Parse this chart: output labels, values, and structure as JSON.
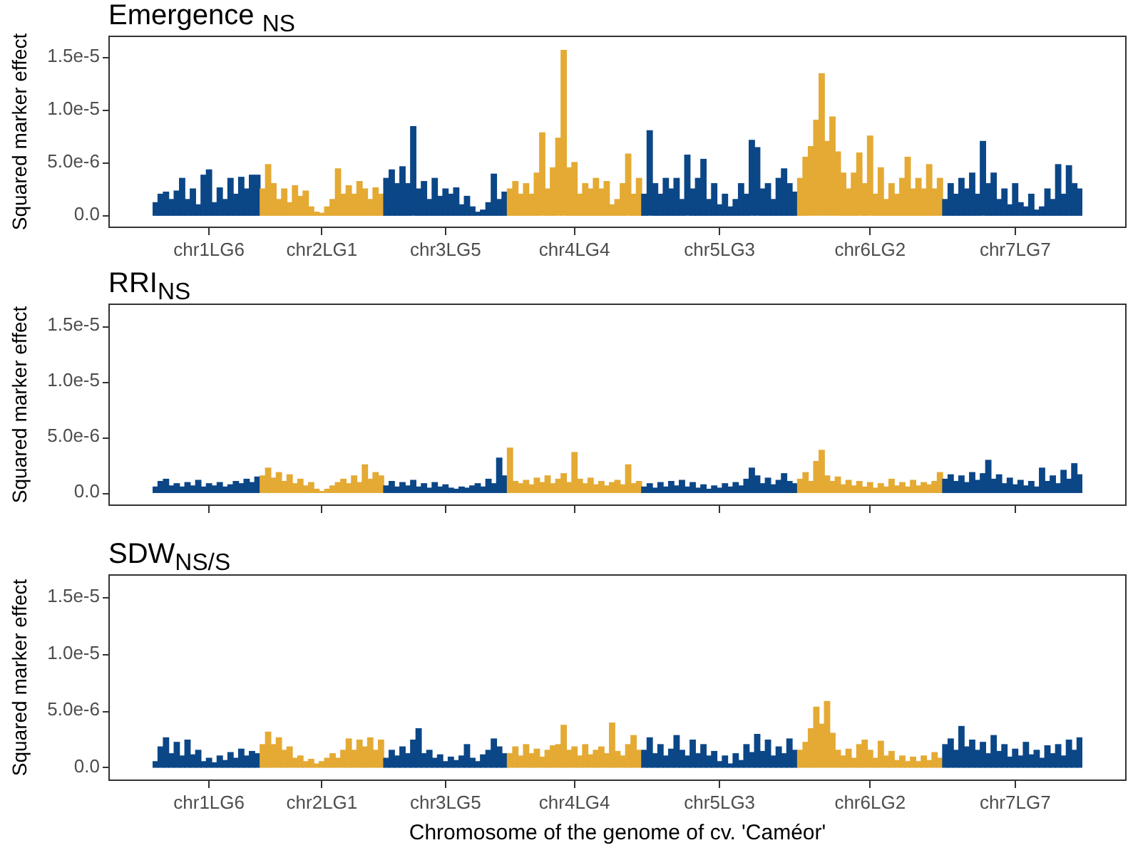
{
  "chart_data": [
    {
      "type": "bar",
      "title": "Emergence $_{NS}$",
      "ylabel": "Squared marker effect",
      "categories": [
        null,
        null,
        null,
        null,
        null,
        null,
        null,
        null,
        null,
        null,
        "chr1LG6",
        null,
        null,
        null,
        null,
        null,
        null,
        null,
        null,
        null,
        null,
        null,
        null,
        null,
        null,
        null,
        null,
        null,
        null,
        null,
        null,
        "chr2LG1",
        null,
        null,
        null,
        null,
        null,
        null,
        null,
        null,
        null,
        null,
        null,
        null,
        null,
        null,
        null,
        null,
        null,
        null,
        null,
        null,
        null,
        null,
        "chr3LG5",
        null,
        null,
        null,
        null,
        null,
        null,
        null,
        null,
        null,
        null,
        null,
        null,
        null,
        null,
        null,
        null,
        null,
        null,
        null,
        null,
        null,
        null,
        null,
        "chr4LG4",
        null,
        null,
        null,
        null,
        null,
        null,
        null,
        null,
        null,
        null,
        null,
        null,
        null,
        null,
        null,
        null,
        null,
        null,
        null,
        null,
        null,
        null,
        null,
        null,
        null,
        null,
        "chr5LG3",
        null,
        null,
        null,
        null,
        null,
        null,
        null,
        null,
        null,
        null,
        null,
        null,
        null,
        null,
        null,
        null,
        null,
        null,
        null,
        null,
        null,
        null,
        null,
        null,
        null,
        null,
        null,
        "chr6LG2",
        null,
        null,
        null,
        null,
        null,
        null,
        null,
        null,
        null,
        null,
        null,
        null,
        null,
        null,
        null,
        null,
        null,
        null,
        null,
        null,
        null,
        null,
        null,
        null,
        null,
        null,
        "chr7LG7",
        null,
        null,
        null,
        null,
        null,
        null,
        null,
        null,
        null,
        null,
        null,
        null
      ],
      "values": [
        1.2e-06,
        2e-06,
        2.2e-06,
        1.5e-06,
        2.3e-06,
        3.5e-06,
        1.5e-06,
        2.5e-06,
        1e-06,
        3.8e-06,
        4.3e-06,
        1.2e-06,
        2.6e-06,
        1.5e-06,
        3.5e-06,
        2e-06,
        3.6e-06,
        2.5e-06,
        3.8e-06,
        3.8e-06,
        2.5e-06,
        4.8e-06,
        3e-06,
        1.5e-06,
        2.5e-06,
        1.2e-06,
        2.8e-06,
        1.8e-06,
        2.3e-06,
        8e-07,
        3e-07,
        2e-07,
        8e-07,
        1.5e-06,
        4.4e-06,
        2e-06,
        2.8e-06,
        2e-06,
        3.2e-06,
        2.5e-06,
        1.5e-06,
        2.6e-06,
        2e-06,
        3.5e-06,
        4.3e-06,
        3e-06,
        4.6e-06,
        3e-06,
        8.4e-06,
        2.5e-06,
        3.2e-06,
        1.5e-06,
        3.5e-06,
        1.8e-06,
        2.5e-06,
        2e-06,
        2.6e-06,
        1e-06,
        1.8e-06,
        8e-07,
        3e-07,
        5e-07,
        1.2e-06,
        3.9e-06,
        1.5e-06,
        2.2e-06,
        2.5e-06,
        3.2e-06,
        2e-06,
        3e-06,
        2e-06,
        4e-06,
        7.8e-06,
        2.5e-06,
        4.5e-06,
        7.3e-06,
        1.56e-05,
        4.5e-06,
        5e-06,
        2e-06,
        3e-06,
        2.5e-06,
        3.5e-06,
        2.5e-06,
        3.2e-06,
        1e-06,
        1.5e-06,
        3e-06,
        5.8e-06,
        2e-06,
        3.5e-06,
        2e-06,
        8e-06,
        3e-06,
        2e-06,
        3.5e-06,
        2.5e-06,
        3.5e-06,
        1.5e-06,
        5.7e-06,
        2.5e-06,
        3.5e-06,
        5.3e-06,
        1.5e-06,
        3e-06,
        1e-06,
        2e-06,
        8e-07,
        1.5e-06,
        3e-06,
        2e-06,
        7.1e-06,
        6.4e-06,
        2.5e-06,
        3e-06,
        1.5e-06,
        3.5e-06,
        4.4e-06,
        3e-06,
        2.2e-06,
        3.5e-06,
        5.5e-06,
        6.5e-06,
        9e-06,
        1.34e-05,
        7e-06,
        9.3e-06,
        6e-06,
        4e-06,
        2.5e-06,
        4e-06,
        5.9e-06,
        3e-06,
        7.5e-06,
        2e-06,
        4.5e-06,
        1.5e-06,
        3e-06,
        2e-06,
        3.5e-06,
        5.5e-06,
        2.5e-06,
        3.5e-06,
        2.5e-06,
        4.8e-06,
        2.5e-06,
        3.5e-06,
        1.5e-06,
        3e-06,
        2e-06,
        3.5e-06,
        2.5e-06,
        4e-06,
        2e-06,
        7e-06,
        3e-06,
        4e-06,
        1.5e-06,
        2.5e-06,
        1e-06,
        3e-06,
        1.2e-06,
        8e-07,
        2e-06,
        5e-07,
        8e-07,
        2.5e-06,
        1.5e-06,
        4.8e-06,
        2e-06,
        4.7e-06,
        3e-06,
        2.5e-06
      ],
      "colors": [
        "#0b4687",
        "#0b4687",
        "#0b4687",
        "#0b4687",
        "#0b4687",
        "#0b4687",
        "#0b4687",
        "#0b4687",
        "#0b4687",
        "#0b4687",
        "#0b4687",
        "#0b4687",
        "#0b4687",
        "#0b4687",
        "#0b4687",
        "#0b4687",
        "#0b4687",
        "#0b4687",
        "#0b4687",
        "#0b4687",
        "#e4aa34",
        "#e4aa34",
        "#e4aa34",
        "#e4aa34",
        "#e4aa34",
        "#e4aa34",
        "#e4aa34",
        "#e4aa34",
        "#e4aa34",
        "#e4aa34",
        "#e4aa34",
        "#e4aa34",
        "#e4aa34",
        "#e4aa34",
        "#e4aa34",
        "#e4aa34",
        "#e4aa34",
        "#e4aa34",
        "#e4aa34",
        "#e4aa34",
        "#e4aa34",
        "#e4aa34",
        "#e4aa34",
        "#0b4687",
        "#0b4687",
        "#0b4687",
        "#0b4687",
        "#0b4687",
        "#0b4687",
        "#0b4687",
        "#0b4687",
        "#0b4687",
        "#0b4687",
        "#0b4687",
        "#0b4687",
        "#0b4687",
        "#0b4687",
        "#0b4687",
        "#0b4687",
        "#0b4687",
        "#0b4687",
        "#0b4687",
        "#0b4687",
        "#0b4687",
        "#0b4687",
        "#0b4687",
        "#e4aa34",
        "#e4aa34",
        "#e4aa34",
        "#e4aa34",
        "#e4aa34",
        "#e4aa34",
        "#e4aa34",
        "#e4aa34",
        "#e4aa34",
        "#e4aa34",
        "#e4aa34",
        "#e4aa34",
        "#e4aa34",
        "#e4aa34",
        "#e4aa34",
        "#e4aa34",
        "#e4aa34",
        "#e4aa34",
        "#e4aa34",
        "#e4aa34",
        "#e4aa34",
        "#e4aa34",
        "#e4aa34",
        "#e4aa34",
        "#e4aa34",
        "#0b4687",
        "#0b4687",
        "#0b4687",
        "#0b4687",
        "#0b4687",
        "#0b4687",
        "#0b4687",
        "#0b4687",
        "#0b4687",
        "#0b4687",
        "#0b4687",
        "#0b4687",
        "#0b4687",
        "#0b4687",
        "#0b4687",
        "#0b4687",
        "#0b4687",
        "#0b4687",
        "#0b4687",
        "#0b4687",
        "#0b4687",
        "#0b4687",
        "#0b4687",
        "#0b4687",
        "#0b4687",
        "#0b4687",
        "#0b4687",
        "#0b4687",
        "#0b4687",
        "#e4aa34",
        "#e4aa34",
        "#e4aa34",
        "#e4aa34",
        "#e4aa34",
        "#e4aa34",
        "#e4aa34",
        "#e4aa34",
        "#e4aa34",
        "#e4aa34",
        "#e4aa34",
        "#e4aa34",
        "#e4aa34",
        "#e4aa34",
        "#e4aa34",
        "#e4aa34",
        "#e4aa34",
        "#e4aa34",
        "#e4aa34",
        "#e4aa34",
        "#e4aa34",
        "#e4aa34",
        "#e4aa34",
        "#e4aa34",
        "#e4aa34",
        "#e4aa34",
        "#e4aa34",
        "#0b4687",
        "#0b4687",
        "#0b4687",
        "#0b4687",
        "#0b4687",
        "#0b4687",
        "#0b4687",
        "#0b4687",
        "#0b4687",
        "#0b4687",
        "#0b4687",
        "#0b4687",
        "#0b4687",
        "#0b4687",
        "#0b4687",
        "#0b4687",
        "#0b4687",
        "#0b4687",
        "#0b4687",
        "#0b4687",
        "#0b4687",
        "#0b4687",
        "#0b4687",
        "#0b4687",
        "#0b4687",
        "#0b4687"
      ],
      "ylim": [
        -1.2e-06,
        1.7e-05
      ],
      "yticks": [
        {
          "value": 0,
          "label": "0.0"
        },
        {
          "value": 5e-06,
          "label": "5.0e-6"
        },
        {
          "value": 1e-05,
          "label": "1.0e-5"
        },
        {
          "value": 1.5e-05,
          "label": "1.5e-5"
        }
      ]
    },
    {
      "type": "bar",
      "title": "RRI$_{NS}$",
      "ylabel": "Squared marker effect",
      "tick_labels": "y",
      "categories": [
        null,
        null,
        null,
        null,
        null,
        null,
        null,
        null,
        null,
        null,
        null,
        null,
        null,
        null,
        null,
        null,
        null,
        null,
        null,
        null,
        null,
        null,
        null,
        null,
        null,
        null,
        null,
        null,
        null,
        null,
        null,
        null,
        null,
        null,
        null,
        null,
        null,
        null,
        null,
        null,
        null,
        null,
        null,
        null,
        null,
        null,
        null,
        null,
        null,
        null,
        null,
        null,
        null,
        null,
        null,
        null,
        null,
        null,
        null,
        null,
        null,
        null,
        null,
        null,
        null,
        null,
        null,
        null,
        null,
        null,
        null,
        null,
        null,
        null,
        null,
        null,
        null,
        null,
        null,
        null,
        null,
        null,
        null,
        null,
        null,
        null,
        null,
        null,
        null,
        null,
        null,
        null,
        null,
        null,
        null,
        null,
        null,
        null,
        null,
        null,
        null,
        null,
        null,
        null,
        null,
        null,
        null,
        null,
        null,
        null,
        null,
        null,
        null,
        null,
        null,
        null,
        null,
        null,
        null,
        null,
        null,
        null,
        null,
        null,
        null,
        null,
        null,
        null,
        null,
        null,
        null,
        null,
        null,
        null,
        null,
        null,
        null,
        null,
        null,
        null,
        null,
        null,
        null,
        null,
        null,
        null,
        null,
        null,
        null,
        null,
        null,
        null,
        null,
        null,
        null,
        null,
        null,
        null,
        null,
        null,
        null,
        null,
        null,
        null,
        null,
        null,
        null,
        null,
        null,
        null,
        null,
        null,
        null
      ],
      "values": [
        5e-07,
        1e-06,
        1.2e-06,
        6e-07,
        8e-07,
        5e-07,
        9e-07,
        6e-07,
        1.1e-06,
        5e-07,
        8e-07,
        6e-07,
        9e-07,
        5e-07,
        7e-07,
        1e-06,
        8e-07,
        1.2e-06,
        9e-07,
        1.4e-06,
        1.5e-06,
        2.2e-06,
        1.3e-06,
        1.8e-06,
        1e-06,
        1.6e-06,
        8e-07,
        1.2e-06,
        6e-07,
        9e-07,
        3e-07,
        1e-07,
        3e-07,
        6e-07,
        9e-07,
        1.2e-06,
        8e-07,
        1.5e-06,
        9e-07,
        2.5e-06,
        1.2e-06,
        1.8e-06,
        1.5e-06,
        6e-07,
        1e-06,
        5e-07,
        9e-07,
        6e-07,
        1.1e-06,
        5e-07,
        8e-07,
        4e-07,
        9e-07,
        5e-07,
        7e-07,
        4e-07,
        3e-07,
        5e-07,
        4e-07,
        6e-07,
        8e-07,
        5e-07,
        1.2e-06,
        8e-07,
        3.1e-06,
        1.5e-06,
        4e-06,
        1e-06,
        8e-07,
        1.1e-06,
        7e-07,
        1.3e-06,
        9e-07,
        1.5e-06,
        8e-07,
        1.2e-06,
        1.7e-06,
        9e-07,
        3.6e-06,
        1.2e-06,
        8e-07,
        1.3e-06,
        7e-07,
        1e-06,
        6e-07,
        9e-07,
        1.1e-06,
        7e-07,
        2.5e-06,
        8e-07,
        1e-06,
        5e-07,
        8e-07,
        4e-07,
        9e-07,
        5e-07,
        1e-06,
        6e-07,
        1.1e-06,
        5e-07,
        9e-07,
        4e-07,
        7e-07,
        3e-07,
        6e-07,
        4e-07,
        8e-07,
        5e-07,
        9e-07,
        6e-07,
        1.2e-06,
        2.2e-06,
        1.5e-06,
        8e-07,
        1.3e-06,
        7e-07,
        1.1e-06,
        1.7e-06,
        1e-06,
        8e-07,
        1.2e-06,
        1.8e-06,
        1e-06,
        2.8e-06,
        3.8e-06,
        1.5e-06,
        1e-06,
        1.4e-06,
        7e-07,
        1.1e-06,
        6e-07,
        1e-06,
        5e-07,
        9e-07,
        4e-07,
        8e-07,
        5e-07,
        1.2e-06,
        6e-07,
        9e-07,
        5e-07,
        1.1e-06,
        6e-07,
        9e-07,
        7e-07,
        1e-06,
        1.8e-06,
        1.2e-06,
        1.6e-06,
        1e-06,
        1.5e-06,
        9e-07,
        1.8e-06,
        1.1e-06,
        1.7e-06,
        2.9e-06,
        1.2e-06,
        1.6e-06,
        8e-07,
        1.3e-06,
        7e-07,
        1.1e-06,
        6e-07,
        1e-06,
        5e-07,
        2.2e-06,
        1e-06,
        1.5e-06,
        8e-07,
        2e-06,
        1.2e-06,
        2.6e-06,
        1.6e-06
      ],
      "colors": [
        "#0b4687",
        "#0b4687",
        "#0b4687",
        "#0b4687",
        "#0b4687",
        "#0b4687",
        "#0b4687",
        "#0b4687",
        "#0b4687",
        "#0b4687",
        "#0b4687",
        "#0b4687",
        "#0b4687",
        "#0b4687",
        "#0b4687",
        "#0b4687",
        "#0b4687",
        "#0b4687",
        "#0b4687",
        "#0b4687",
        "#e4aa34",
        "#e4aa34",
        "#e4aa34",
        "#e4aa34",
        "#e4aa34",
        "#e4aa34",
        "#e4aa34",
        "#e4aa34",
        "#e4aa34",
        "#e4aa34",
        "#e4aa34",
        "#e4aa34",
        "#e4aa34",
        "#e4aa34",
        "#e4aa34",
        "#e4aa34",
        "#e4aa34",
        "#e4aa34",
        "#e4aa34",
        "#e4aa34",
        "#e4aa34",
        "#e4aa34",
        "#e4aa34",
        "#0b4687",
        "#0b4687",
        "#0b4687",
        "#0b4687",
        "#0b4687",
        "#0b4687",
        "#0b4687",
        "#0b4687",
        "#0b4687",
        "#0b4687",
        "#0b4687",
        "#0b4687",
        "#0b4687",
        "#0b4687",
        "#0b4687",
        "#0b4687",
        "#0b4687",
        "#0b4687",
        "#0b4687",
        "#0b4687",
        "#0b4687",
        "#0b4687",
        "#0b4687",
        "#e4aa34",
        "#e4aa34",
        "#e4aa34",
        "#e4aa34",
        "#e4aa34",
        "#e4aa34",
        "#e4aa34",
        "#e4aa34",
        "#e4aa34",
        "#e4aa34",
        "#e4aa34",
        "#e4aa34",
        "#e4aa34",
        "#e4aa34",
        "#e4aa34",
        "#e4aa34",
        "#e4aa34",
        "#e4aa34",
        "#e4aa34",
        "#e4aa34",
        "#e4aa34",
        "#e4aa34",
        "#e4aa34",
        "#e4aa34",
        "#e4aa34",
        "#0b4687",
        "#0b4687",
        "#0b4687",
        "#0b4687",
        "#0b4687",
        "#0b4687",
        "#0b4687",
        "#0b4687",
        "#0b4687",
        "#0b4687",
        "#0b4687",
        "#0b4687",
        "#0b4687",
        "#0b4687",
        "#0b4687",
        "#0b4687",
        "#0b4687",
        "#0b4687",
        "#0b4687",
        "#0b4687",
        "#0b4687",
        "#0b4687",
        "#0b4687",
        "#0b4687",
        "#0b4687",
        "#0b4687",
        "#0b4687",
        "#0b4687",
        "#0b4687",
        "#e4aa34",
        "#e4aa34",
        "#e4aa34",
        "#e4aa34",
        "#e4aa34",
        "#e4aa34",
        "#e4aa34",
        "#e4aa34",
        "#e4aa34",
        "#e4aa34",
        "#e4aa34",
        "#e4aa34",
        "#e4aa34",
        "#e4aa34",
        "#e4aa34",
        "#e4aa34",
        "#e4aa34",
        "#e4aa34",
        "#e4aa34",
        "#e4aa34",
        "#e4aa34",
        "#e4aa34",
        "#e4aa34",
        "#e4aa34",
        "#e4aa34",
        "#e4aa34",
        "#e4aa34",
        "#0b4687",
        "#0b4687",
        "#0b4687",
        "#0b4687",
        "#0b4687",
        "#0b4687",
        "#0b4687",
        "#0b4687",
        "#0b4687",
        "#0b4687",
        "#0b4687",
        "#0b4687",
        "#0b4687",
        "#0b4687",
        "#0b4687",
        "#0b4687",
        "#0b4687",
        "#0b4687",
        "#0b4687",
        "#0b4687",
        "#0b4687",
        "#0b4687",
        "#0b4687",
        "#0b4687",
        "#0b4687",
        "#0b4687"
      ],
      "ylim": [
        -1.2e-06,
        1.7e-05
      ],
      "yticks": [
        {
          "value": 0,
          "label": "0.0"
        },
        {
          "value": 5e-06,
          "label": "5.0e-6"
        },
        {
          "value": 1e-05,
          "label": "1.0e-5"
        },
        {
          "value": 1.5e-05,
          "label": "1.5e-5"
        }
      ]
    },
    {
      "type": "bar",
      "title": "SDW$_{NS/S}$",
      "ylabel": "Squared marker effect",
      "xlabel": "Chromosome of the genome of cv. 'Caméor'",
      "categories": [
        null,
        null,
        null,
        null,
        null,
        null,
        null,
        null,
        null,
        null,
        "chr1LG6",
        null,
        null,
        null,
        null,
        null,
        null,
        null,
        null,
        null,
        null,
        null,
        null,
        null,
        null,
        null,
        null,
        null,
        null,
        null,
        null,
        "chr2LG1",
        null,
        null,
        null,
        null,
        null,
        null,
        null,
        null,
        null,
        null,
        null,
        null,
        null,
        null,
        null,
        null,
        null,
        null,
        null,
        null,
        null,
        null,
        "chr3LG5",
        null,
        null,
        null,
        null,
        null,
        null,
        null,
        null,
        null,
        null,
        null,
        null,
        null,
        null,
        null,
        null,
        null,
        null,
        null,
        null,
        null,
        null,
        null,
        "chr4LG4",
        null,
        null,
        null,
        null,
        null,
        null,
        null,
        null,
        null,
        null,
        null,
        null,
        null,
        null,
        null,
        null,
        null,
        null,
        null,
        null,
        null,
        null,
        null,
        null,
        null,
        null,
        "chr5LG3",
        null,
        null,
        null,
        null,
        null,
        null,
        null,
        null,
        null,
        null,
        null,
        null,
        null,
        null,
        null,
        null,
        null,
        null,
        null,
        null,
        null,
        null,
        null,
        null,
        null,
        null,
        null,
        "chr6LG2",
        null,
        null,
        null,
        null,
        null,
        null,
        null,
        null,
        null,
        null,
        null,
        null,
        null,
        null,
        null,
        null,
        null,
        null,
        null,
        null,
        null,
        null,
        null,
        null,
        null,
        null,
        "chr7LG7",
        null,
        null,
        null,
        null,
        null,
        null,
        null,
        null,
        null,
        null,
        null,
        null
      ],
      "values": [
        5e-07,
        1.8e-06,
        2.6e-06,
        1.2e-06,
        2.2e-06,
        1e-06,
        2.4e-06,
        1.1e-06,
        1.5e-06,
        5e-07,
        8e-07,
        4e-07,
        1e-06,
        6e-07,
        1.3e-06,
        8e-07,
        1.6e-06,
        1e-06,
        1.4e-06,
        1.2e-06,
        2e-06,
        3.1e-06,
        2e-06,
        2.6e-06,
        1.5e-06,
        1.8e-06,
        8e-07,
        1e-06,
        5e-07,
        7e-07,
        3e-07,
        5e-07,
        8e-07,
        1.2e-06,
        8e-07,
        1.5e-06,
        2.5e-06,
        1.5e-06,
        2.4e-06,
        1.8e-06,
        2.6e-06,
        1.5e-06,
        2.4e-06,
        8e-07,
        1.5e-06,
        1e-06,
        1.8e-06,
        1.2e-06,
        2.4e-06,
        3.4e-06,
        1.2e-06,
        1.5e-06,
        8e-07,
        1.1e-06,
        5e-07,
        9e-07,
        6e-07,
        1e-06,
        2e-06,
        8e-07,
        5e-07,
        1.1e-06,
        1.5e-06,
        2.5e-06,
        1.8e-06,
        1.2e-06,
        1.2e-06,
        1.8e-06,
        1e-06,
        2e-06,
        1.2e-06,
        1.6e-06,
        9e-07,
        1.5e-06,
        1.9e-06,
        2e-06,
        3.7e-06,
        1.5e-06,
        1.8e-06,
        1e-06,
        2e-06,
        1.1e-06,
        1.5e-06,
        1.8e-06,
        1.2e-06,
        3.9e-06,
        1.4e-06,
        1e-06,
        2e-06,
        2.8e-06,
        1.5e-06,
        1.5e-06,
        2.6e-06,
        1.2e-06,
        2e-06,
        1e-06,
        1.6e-06,
        2.8e-06,
        1.5e-06,
        1e-06,
        2.4e-06,
        1.2e-06,
        2e-06,
        1e-06,
        1.4e-06,
        5e-07,
        1e-06,
        3e-07,
        1.2e-06,
        6e-07,
        2e-06,
        1.3e-06,
        2.9e-06,
        1.4e-06,
        2.4e-06,
        1e-06,
        1.8e-06,
        1.2e-06,
        2.5e-06,
        1.5e-06,
        1.5e-06,
        2.2e-06,
        3.4e-06,
        5.3e-06,
        3.8e-06,
        5.8e-06,
        3e-06,
        1.5e-06,
        1e-06,
        1.6e-06,
        8e-07,
        2e-06,
        2.4e-06,
        1.5e-06,
        8e-07,
        2.3e-06,
        1e-06,
        1.4e-06,
        6e-07,
        1e-06,
        5e-07,
        9e-07,
        5e-07,
        1e-06,
        6e-07,
        1.3e-06,
        8e-07,
        2e-06,
        2.5e-06,
        1.5e-06,
        3.6e-06,
        1.8e-06,
        2.4e-06,
        1.5e-06,
        2.2e-06,
        1.2e-06,
        2.8e-06,
        1.4e-06,
        2e-06,
        9e-07,
        1.6e-06,
        1e-06,
        2.2e-06,
        1.1e-06,
        1.5e-06,
        8e-07,
        1.9e-06,
        1.2e-06,
        2e-06,
        1e-06,
        2.4e-06,
        1.5e-06,
        2.6e-06
      ],
      "colors": [
        "#0b4687",
        "#0b4687",
        "#0b4687",
        "#0b4687",
        "#0b4687",
        "#0b4687",
        "#0b4687",
        "#0b4687",
        "#0b4687",
        "#0b4687",
        "#0b4687",
        "#0b4687",
        "#0b4687",
        "#0b4687",
        "#0b4687",
        "#0b4687",
        "#0b4687",
        "#0b4687",
        "#0b4687",
        "#0b4687",
        "#e4aa34",
        "#e4aa34",
        "#e4aa34",
        "#e4aa34",
        "#e4aa34",
        "#e4aa34",
        "#e4aa34",
        "#e4aa34",
        "#e4aa34",
        "#e4aa34",
        "#e4aa34",
        "#e4aa34",
        "#e4aa34",
        "#e4aa34",
        "#e4aa34",
        "#e4aa34",
        "#e4aa34",
        "#e4aa34",
        "#e4aa34",
        "#e4aa34",
        "#e4aa34",
        "#e4aa34",
        "#e4aa34",
        "#0b4687",
        "#0b4687",
        "#0b4687",
        "#0b4687",
        "#0b4687",
        "#0b4687",
        "#0b4687",
        "#0b4687",
        "#0b4687",
        "#0b4687",
        "#0b4687",
        "#0b4687",
        "#0b4687",
        "#0b4687",
        "#0b4687",
        "#0b4687",
        "#0b4687",
        "#0b4687",
        "#0b4687",
        "#0b4687",
        "#0b4687",
        "#0b4687",
        "#0b4687",
        "#e4aa34",
        "#e4aa34",
        "#e4aa34",
        "#e4aa34",
        "#e4aa34",
        "#e4aa34",
        "#e4aa34",
        "#e4aa34",
        "#e4aa34",
        "#e4aa34",
        "#e4aa34",
        "#e4aa34",
        "#e4aa34",
        "#e4aa34",
        "#e4aa34",
        "#e4aa34",
        "#e4aa34",
        "#e4aa34",
        "#e4aa34",
        "#e4aa34",
        "#e4aa34",
        "#e4aa34",
        "#e4aa34",
        "#e4aa34",
        "#e4aa34",
        "#0b4687",
        "#0b4687",
        "#0b4687",
        "#0b4687",
        "#0b4687",
        "#0b4687",
        "#0b4687",
        "#0b4687",
        "#0b4687",
        "#0b4687",
        "#0b4687",
        "#0b4687",
        "#0b4687",
        "#0b4687",
        "#0b4687",
        "#0b4687",
        "#0b4687",
        "#0b4687",
        "#0b4687",
        "#0b4687",
        "#0b4687",
        "#0b4687",
        "#0b4687",
        "#0b4687",
        "#0b4687",
        "#0b4687",
        "#0b4687",
        "#0b4687",
        "#0b4687",
        "#e4aa34",
        "#e4aa34",
        "#e4aa34",
        "#e4aa34",
        "#e4aa34",
        "#e4aa34",
        "#e4aa34",
        "#e4aa34",
        "#e4aa34",
        "#e4aa34",
        "#e4aa34",
        "#e4aa34",
        "#e4aa34",
        "#e4aa34",
        "#e4aa34",
        "#e4aa34",
        "#e4aa34",
        "#e4aa34",
        "#e4aa34",
        "#e4aa34",
        "#e4aa34",
        "#e4aa34",
        "#e4aa34",
        "#e4aa34",
        "#e4aa34",
        "#e4aa34",
        "#e4aa34",
        "#0b4687",
        "#0b4687",
        "#0b4687",
        "#0b4687",
        "#0b4687",
        "#0b4687",
        "#0b4687",
        "#0b4687",
        "#0b4687",
        "#0b4687",
        "#0b4687",
        "#0b4687",
        "#0b4687",
        "#0b4687",
        "#0b4687",
        "#0b4687",
        "#0b4687",
        "#0b4687",
        "#0b4687",
        "#0b4687",
        "#0b4687",
        "#0b4687",
        "#0b4687",
        "#0b4687",
        "#0b4687",
        "#0b4687"
      ],
      "ylim": [
        -1.2e-06,
        1.7e-05
      ],
      "yticks": [
        {
          "value": 0,
          "label": "0.0"
        },
        {
          "value": 5e-06,
          "label": "5.0e-6"
        },
        {
          "value": 1e-05,
          "label": "1.0e-5"
        },
        {
          "value": 1.5e-05,
          "label": "1.5e-5"
        }
      ]
    }
  ]
}
